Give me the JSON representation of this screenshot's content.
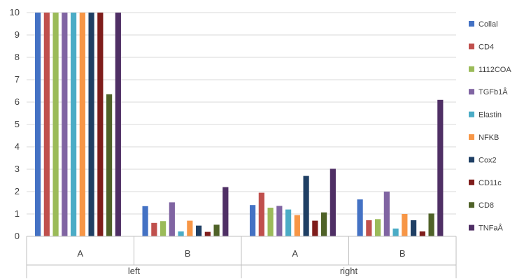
{
  "chart_data": {
    "type": "bar",
    "title": "",
    "xlabel": "",
    "ylabel": "",
    "ylim": [
      0,
      10
    ],
    "yticks": [
      "0",
      "1",
      "2",
      "3",
      "4",
      "5",
      "6",
      "7",
      "8",
      "9",
      "10"
    ],
    "grid": true,
    "legend_position": "right",
    "groups": [
      {
        "label": "left",
        "categories": [
          "A",
          "B"
        ]
      },
      {
        "label": "right",
        "categories": [
          "A",
          "B"
        ]
      }
    ],
    "series": [
      {
        "name": "Collal",
        "color": "#4472C4",
        "values": [
          10,
          1.35,
          1.4,
          1.65
        ]
      },
      {
        "name": "CD4",
        "color": "#C0504D",
        "values": [
          10,
          0.6,
          1.95,
          0.72
        ]
      },
      {
        "name": "1112COA",
        "color": "#9BBB59",
        "values": [
          10,
          0.68,
          1.28,
          0.77
        ]
      },
      {
        "name": "TGFb1Â",
        "color": "#8064A2",
        "values": [
          10,
          1.52,
          1.36,
          2.0
        ]
      },
      {
        "name": "Elastin",
        "color": "#4BACC6",
        "values": [
          10,
          0.22,
          1.2,
          0.35
        ]
      },
      {
        "name": "NFKB",
        "color": "#F79646",
        "values": [
          10,
          0.7,
          0.95,
          1.0
        ]
      },
      {
        "name": "Cox2",
        "color": "#1F3F64",
        "values": [
          10,
          0.48,
          2.7,
          0.72
        ]
      },
      {
        "name": "CD11c",
        "color": "#7F1D1B",
        "values": [
          10,
          0.2,
          0.7,
          0.22
        ]
      },
      {
        "name": "CD8",
        "color": "#4F6228",
        "values": [
          6.35,
          0.52,
          1.07,
          1.02
        ]
      },
      {
        "name": "TNFaÂ",
        "color": "#4F2F65",
        "values": [
          10,
          2.2,
          3.02,
          6.1
        ]
      }
    ]
  }
}
